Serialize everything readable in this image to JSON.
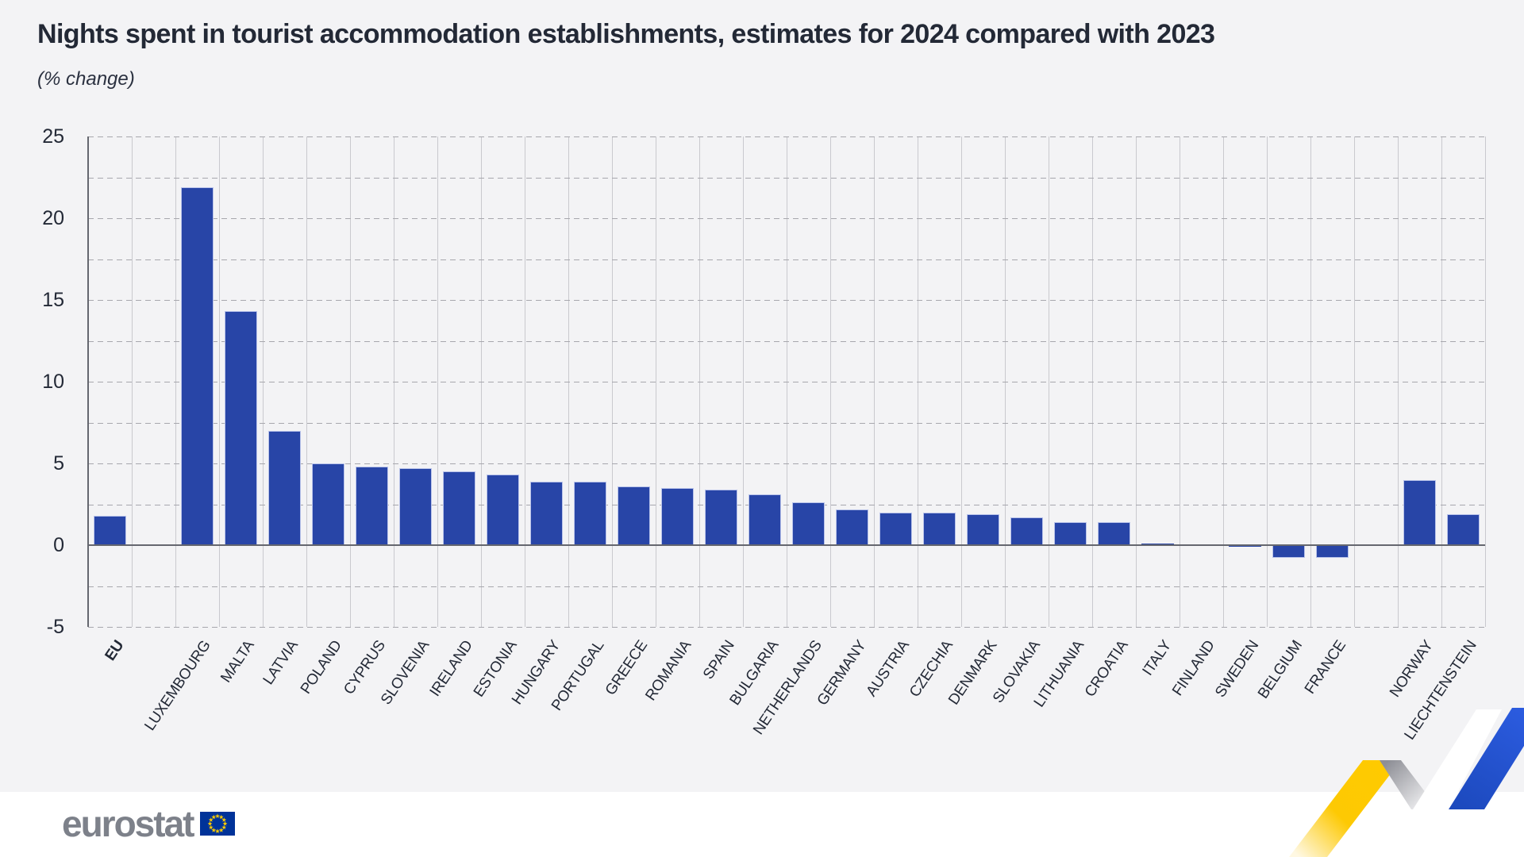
{
  "page": {
    "title": "Nights spent in tourist accommodation establishments, estimates for 2024 compared with 2023",
    "subtitle": "(% change)"
  },
  "branding": {
    "logo_text": "eurostat",
    "logo_color": "#7d818a",
    "eu_flag": {
      "background": "#003399",
      "star_color": "#ffcc00"
    }
  },
  "chart_data": {
    "type": "bar",
    "title": "Nights spent in tourist accommodation establishments, estimates for 2024 compared with 2023",
    "unit_label": "(% change)",
    "ylim": [
      -5,
      25
    ],
    "ytick_labels": [
      25,
      20,
      15,
      10,
      5,
      0,
      -5
    ],
    "gridline_step": 2.5,
    "grid": true,
    "legend_position": "none",
    "bar_color": "#2845a7",
    "bar_border_color": "#b9c3ea",
    "categories": [
      "EU",
      "LUXEMBOURG",
      "MALTA",
      "LATVIA",
      "POLAND",
      "CYPRUS",
      "SLOVENIA",
      "IRELAND",
      "ESTONIA",
      "HUNGARY",
      "PORTUGAL",
      "GREECE",
      "ROMANIA",
      "SPAIN",
      "BULGARIA",
      "NETHERLANDS",
      "GERMANY",
      "AUSTRIA",
      "CZECHIA",
      "DENMARK",
      "SLOVAKIA",
      "LITHUANIA",
      "CROATIA",
      "ITALY",
      "FINLAND",
      "SWEDEN",
      "BELGIUM",
      "FRANCE",
      "NORWAY",
      "LIECHTENSTEIN"
    ],
    "values": [
      1.8,
      21.9,
      14.3,
      7.0,
      5.0,
      4.8,
      4.7,
      4.5,
      4.3,
      3.9,
      3.9,
      3.6,
      3.5,
      3.4,
      3.1,
      2.6,
      2.2,
      2.0,
      2.0,
      1.9,
      1.7,
      1.4,
      1.4,
      0.1,
      0.0,
      -0.1,
      -0.8,
      -0.8,
      4.0,
      1.9
    ],
    "gap_before": [
      "LUXEMBOURG",
      "NORWAY"
    ],
    "emphasized_categories": [
      "EU"
    ]
  }
}
